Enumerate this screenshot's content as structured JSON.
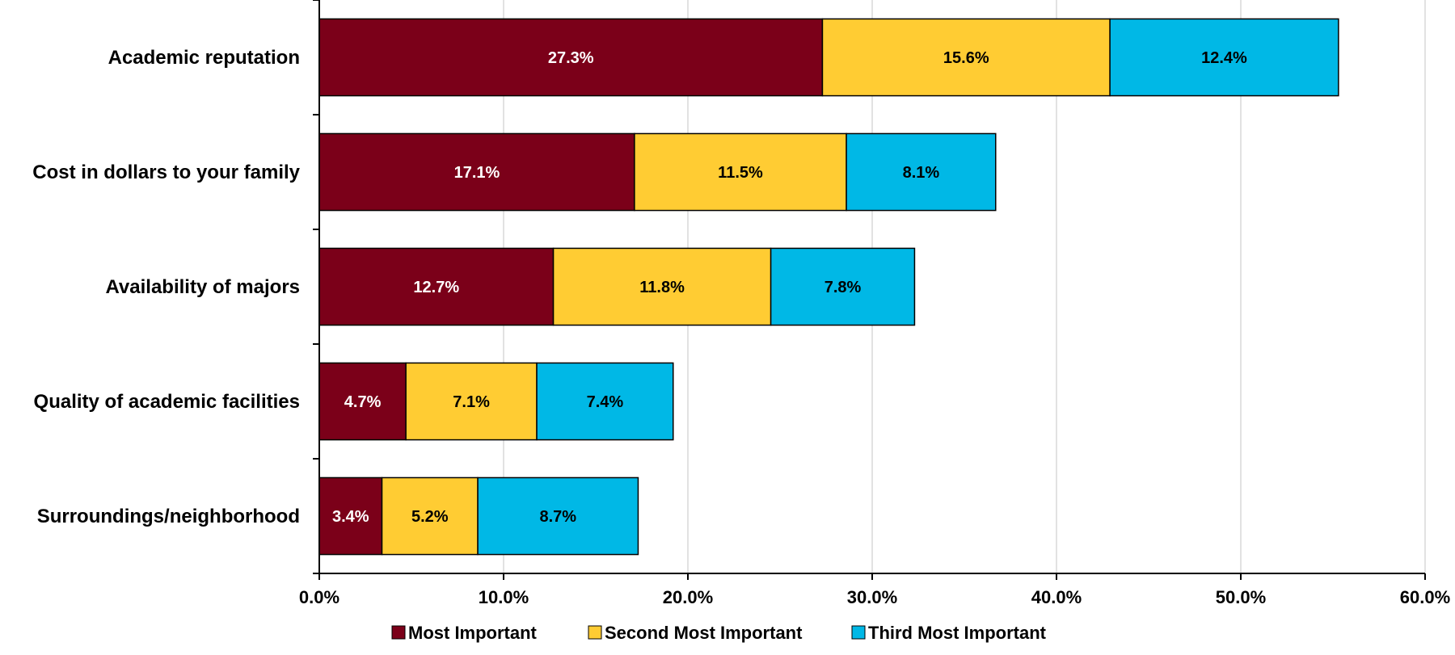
{
  "chart_data": {
    "type": "bar",
    "orientation": "horizontal",
    "stacked": true,
    "title": "",
    "xlabel": "",
    "ylabel": "",
    "categories": [
      "Academic reputation",
      "Cost in dollars to your family",
      "Availability of majors",
      "Quality of academic facilities",
      "Surroundings/neighborhood"
    ],
    "series": [
      {
        "name": "Most Important",
        "color": "#7b0019",
        "label_color": "#ffffff",
        "values": [
          27.3,
          17.1,
          12.7,
          4.7,
          3.4
        ],
        "labels": [
          "27.3%",
          "17.1%",
          "12.7%",
          "4.7%",
          "3.4%"
        ]
      },
      {
        "name": "Second Most Important",
        "color": "#ffcc33",
        "label_color": "#000000",
        "values": [
          15.6,
          11.5,
          11.8,
          7.1,
          5.2
        ],
        "labels": [
          "15.6%",
          "11.5%",
          "11.8%",
          "7.1%",
          "5.2%"
        ]
      },
      {
        "name": "Third Most Important",
        "color": "#00b8e6",
        "label_color": "#000000",
        "values": [
          12.4,
          8.1,
          7.8,
          7.4,
          8.7
        ],
        "labels": [
          "12.4%",
          "8.1%",
          "7.8%",
          "7.4%",
          "8.7%"
        ]
      }
    ],
    "xlim": [
      0,
      60
    ],
    "x_ticks": [
      0,
      10,
      20,
      30,
      40,
      50,
      60
    ],
    "x_tick_labels": [
      "0.0%",
      "10.0%",
      "20.0%",
      "30.0%",
      "40.0%",
      "50.0%",
      "60.0%"
    ],
    "grid": "vertical",
    "legend_position": "bottom"
  }
}
